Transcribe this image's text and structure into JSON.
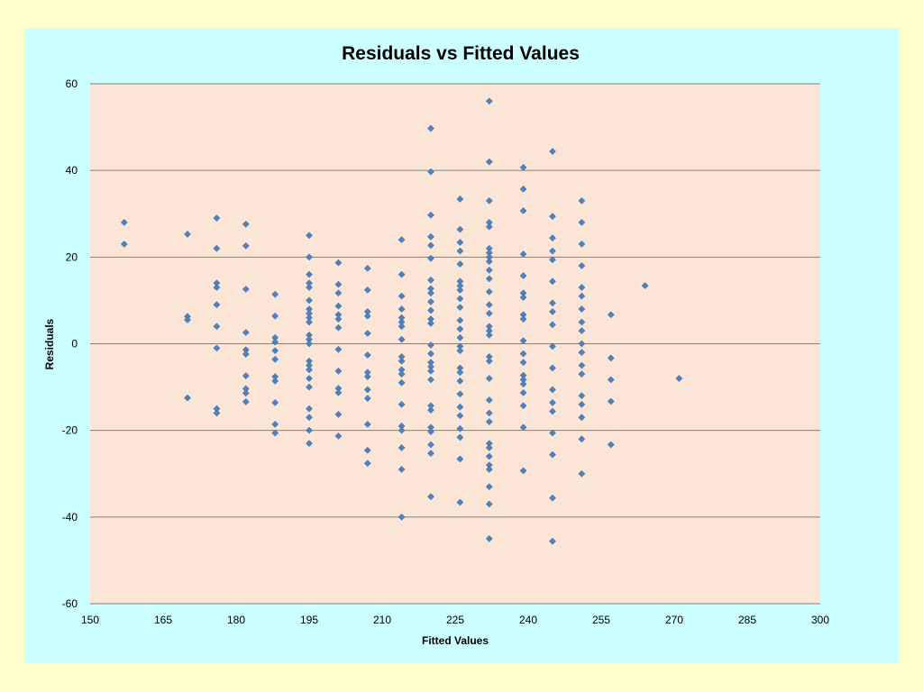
{
  "chart_data": {
    "type": "scatter",
    "title": "Residuals vs Fitted Values",
    "xlabel": "Fitted Values",
    "ylabel": "Residuals",
    "xlim": [
      150,
      300
    ],
    "ylim": [
      -60,
      60
    ],
    "xticks": [
      "150",
      "165",
      "180",
      "195",
      "210",
      "225",
      "240",
      "255",
      "270",
      "285",
      "300"
    ],
    "yticks": [
      "60",
      "40",
      "20",
      "0",
      "-20",
      "-40",
      "-60"
    ],
    "grid": "horizontal",
    "legend": "none",
    "colors": {
      "plot_bg": "#fbe5d6",
      "marker": "#4f81bd",
      "grid": "#808080",
      "panel": "#ccffff",
      "page": "#ffffcc"
    },
    "series": [
      {
        "points": [
          [
            157,
            28
          ],
          [
            157,
            23
          ],
          [
            170,
            25.3
          ],
          [
            170,
            6.3
          ],
          [
            170,
            5.5
          ],
          [
            170,
            -12.5
          ],
          [
            176,
            29
          ],
          [
            176,
            22
          ],
          [
            176,
            14
          ],
          [
            176,
            13
          ],
          [
            176,
            9
          ],
          [
            176,
            4
          ],
          [
            176,
            -1
          ],
          [
            176,
            -15
          ],
          [
            176,
            -16
          ],
          [
            182,
            27.6
          ],
          [
            182,
            22.6
          ],
          [
            182,
            12.6
          ],
          [
            182,
            2.6
          ],
          [
            182,
            -1.4
          ],
          [
            182,
            -2.4
          ],
          [
            182,
            -7.4
          ],
          [
            182,
            -10.4
          ],
          [
            182,
            -11.4
          ],
          [
            182,
            -13.4
          ],
          [
            188,
            11.4
          ],
          [
            188,
            6.4
          ],
          [
            188,
            1.4
          ],
          [
            188,
            0.4
          ],
          [
            188,
            -1.6
          ],
          [
            188,
            -3.6
          ],
          [
            188,
            -7.6
          ],
          [
            188,
            -8.6
          ],
          [
            188,
            -13.6
          ],
          [
            188,
            -18.6
          ],
          [
            188,
            -20.6
          ],
          [
            195,
            25
          ],
          [
            195,
            20
          ],
          [
            195,
            16
          ],
          [
            195,
            14
          ],
          [
            195,
            13
          ],
          [
            195,
            10
          ],
          [
            195,
            8
          ],
          [
            195,
            7
          ],
          [
            195,
            6
          ],
          [
            195,
            5
          ],
          [
            195,
            2
          ],
          [
            195,
            1
          ],
          [
            195,
            0
          ],
          [
            195,
            -4
          ],
          [
            195,
            -5
          ],
          [
            195,
            -6
          ],
          [
            195,
            -8
          ],
          [
            195,
            -10
          ],
          [
            195,
            -15
          ],
          [
            195,
            -17
          ],
          [
            195,
            -20
          ],
          [
            195,
            -23
          ],
          [
            201,
            18.7
          ],
          [
            201,
            13.7
          ],
          [
            201,
            11.7
          ],
          [
            201,
            8.7
          ],
          [
            201,
            6.7
          ],
          [
            201,
            5.7
          ],
          [
            201,
            3.7
          ],
          [
            201,
            -1.3
          ],
          [
            201,
            -6.3
          ],
          [
            201,
            -10.3
          ],
          [
            201,
            -11.3
          ],
          [
            201,
            -16.3
          ],
          [
            201,
            -21.3
          ],
          [
            207,
            17.4
          ],
          [
            207,
            12.4
          ],
          [
            207,
            7.4
          ],
          [
            207,
            6.4
          ],
          [
            207,
            2.4
          ],
          [
            207,
            -2.6
          ],
          [
            207,
            -6.6
          ],
          [
            207,
            -7.6
          ],
          [
            207,
            -10.6
          ],
          [
            207,
            -12.6
          ],
          [
            207,
            -18.6
          ],
          [
            207,
            -24.6
          ],
          [
            207,
            -27.6
          ],
          [
            214,
            24
          ],
          [
            214,
            16
          ],
          [
            214,
            11
          ],
          [
            214,
            8
          ],
          [
            214,
            6
          ],
          [
            214,
            5
          ],
          [
            214,
            4
          ],
          [
            214,
            1
          ],
          [
            214,
            -3
          ],
          [
            214,
            -4
          ],
          [
            214,
            -6
          ],
          [
            214,
            -7
          ],
          [
            214,
            -9
          ],
          [
            214,
            -14
          ],
          [
            214,
            -19
          ],
          [
            214,
            -20
          ],
          [
            214,
            -24
          ],
          [
            214,
            -29
          ],
          [
            214,
            -40
          ],
          [
            220,
            49.7
          ],
          [
            220,
            39.7
          ],
          [
            220,
            29.7
          ],
          [
            220,
            24.7
          ],
          [
            220,
            22.7
          ],
          [
            220,
            19.7
          ],
          [
            220,
            14.7
          ],
          [
            220,
            12.7
          ],
          [
            220,
            11.7
          ],
          [
            220,
            9.7
          ],
          [
            220,
            7.7
          ],
          [
            220,
            5.7
          ],
          [
            220,
            4.7
          ],
          [
            220,
            -0.3
          ],
          [
            220,
            -2.3
          ],
          [
            220,
            -4.3
          ],
          [
            220,
            -5.3
          ],
          [
            220,
            -6.3
          ],
          [
            220,
            -8.3
          ],
          [
            220,
            -14.3
          ],
          [
            220,
            -15.3
          ],
          [
            220,
            -19.3
          ],
          [
            220,
            -20.3
          ],
          [
            220,
            -23.3
          ],
          [
            220,
            -25.3
          ],
          [
            220,
            -35.3
          ],
          [
            226,
            33.4
          ],
          [
            226,
            26.4
          ],
          [
            226,
            23.4
          ],
          [
            226,
            21.4
          ],
          [
            226,
            18.4
          ],
          [
            226,
            14.4
          ],
          [
            226,
            13.4
          ],
          [
            226,
            12.4
          ],
          [
            226,
            10.4
          ],
          [
            226,
            8.4
          ],
          [
            226,
            5.4
          ],
          [
            226,
            3.4
          ],
          [
            226,
            1.4
          ],
          [
            226,
            -0.6
          ],
          [
            226,
            -1.6
          ],
          [
            226,
            -5.6
          ],
          [
            226,
            -6.6
          ],
          [
            226,
            -8.6
          ],
          [
            226,
            -11.6
          ],
          [
            226,
            -14.6
          ],
          [
            226,
            -16.6
          ],
          [
            226,
            -19.6
          ],
          [
            226,
            -21.6
          ],
          [
            226,
            -26.6
          ],
          [
            226,
            -36.6
          ],
          [
            232,
            56
          ],
          [
            232,
            42
          ],
          [
            232,
            33
          ],
          [
            232,
            28
          ],
          [
            232,
            27
          ],
          [
            232,
            22
          ],
          [
            232,
            21
          ],
          [
            232,
            20
          ],
          [
            232,
            19
          ],
          [
            232,
            17
          ],
          [
            232,
            15
          ],
          [
            232,
            12
          ],
          [
            232,
            9
          ],
          [
            232,
            7
          ],
          [
            232,
            4
          ],
          [
            232,
            3
          ],
          [
            232,
            2
          ],
          [
            232,
            -3
          ],
          [
            232,
            -4
          ],
          [
            232,
            -8
          ],
          [
            232,
            -13
          ],
          [
            232,
            -16
          ],
          [
            232,
            -18
          ],
          [
            232,
            -23
          ],
          [
            232,
            -24
          ],
          [
            232,
            -26
          ],
          [
            232,
            -28
          ],
          [
            232,
            -29
          ],
          [
            232,
            -33
          ],
          [
            232,
            -37
          ],
          [
            232,
            -45
          ],
          [
            239,
            40.7
          ],
          [
            239,
            35.7
          ],
          [
            239,
            30.7
          ],
          [
            239,
            20.7
          ],
          [
            239,
            15.7
          ],
          [
            239,
            11.7
          ],
          [
            239,
            10.7
          ],
          [
            239,
            6.7
          ],
          [
            239,
            5.7
          ],
          [
            239,
            0.7
          ],
          [
            239,
            -2.3
          ],
          [
            239,
            -4.3
          ],
          [
            239,
            -7.3
          ],
          [
            239,
            -8.3
          ],
          [
            239,
            -9.3
          ],
          [
            239,
            -11.3
          ],
          [
            239,
            -14.3
          ],
          [
            239,
            -19.3
          ],
          [
            239,
            -29.3
          ],
          [
            245,
            44.4
          ],
          [
            245,
            29.4
          ],
          [
            245,
            24.4
          ],
          [
            245,
            21.4
          ],
          [
            245,
            19.4
          ],
          [
            245,
            14.4
          ],
          [
            245,
            9.4
          ],
          [
            245,
            7.4
          ],
          [
            245,
            4.4
          ],
          [
            245,
            -0.6
          ],
          [
            245,
            -5.6
          ],
          [
            245,
            -10.6
          ],
          [
            245,
            -13.6
          ],
          [
            245,
            -15.6
          ],
          [
            245,
            -20.6
          ],
          [
            245,
            -25.6
          ],
          [
            245,
            -35.6
          ],
          [
            245,
            -45.6
          ],
          [
            251,
            33
          ],
          [
            251,
            28
          ],
          [
            251,
            23
          ],
          [
            251,
            18
          ],
          [
            251,
            13
          ],
          [
            251,
            11
          ],
          [
            251,
            8
          ],
          [
            251,
            5
          ],
          [
            251,
            3
          ],
          [
            251,
            0
          ],
          [
            251,
            -2
          ],
          [
            251,
            -5
          ],
          [
            251,
            -7
          ],
          [
            251,
            -12
          ],
          [
            251,
            -14
          ],
          [
            251,
            -17
          ],
          [
            251,
            -22
          ],
          [
            251,
            -30
          ],
          [
            257,
            6.7
          ],
          [
            257,
            -3.3
          ],
          [
            257,
            -8.3
          ],
          [
            257,
            -13.3
          ],
          [
            257,
            -23.3
          ],
          [
            264,
            13.4
          ],
          [
            271,
            -8
          ]
        ]
      }
    ]
  }
}
